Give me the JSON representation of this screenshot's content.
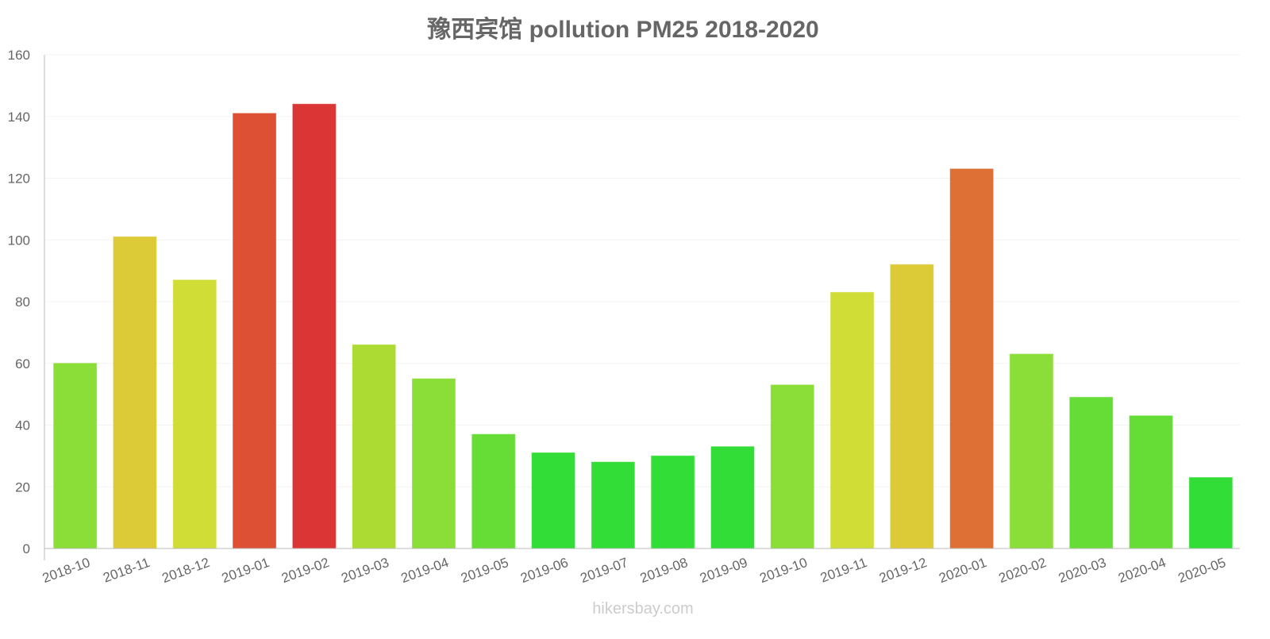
{
  "chart_data": {
    "type": "bar",
    "title": "豫西宾馆 pollution PM25 2018-2020",
    "xlabel": "",
    "ylabel": "",
    "ylim": [
      0,
      160
    ],
    "yticks": [
      0,
      20,
      40,
      60,
      80,
      100,
      120,
      140,
      160
    ],
    "grid": true,
    "categories": [
      "2018-10",
      "2018-11",
      "2018-12",
      "2019-01",
      "2019-02",
      "2019-03",
      "2019-04",
      "2019-05",
      "2019-06",
      "2019-07",
      "2019-08",
      "2019-09",
      "2019-10",
      "2019-11",
      "2019-12",
      "2020-01",
      "2020-02",
      "2020-03",
      "2020-04",
      "2020-05"
    ],
    "values": [
      60,
      101,
      87,
      141,
      144,
      66,
      55,
      37,
      31,
      28,
      30,
      33,
      53,
      83,
      92,
      123,
      63,
      49,
      43,
      23
    ],
    "colors": [
      "#8ade37",
      "#dcca37",
      "#cfdd36",
      "#de5033",
      "#dc3535",
      "#acdc33",
      "#8ade37",
      "#66dd37",
      "#33dd37",
      "#33dd37",
      "#33dd37",
      "#33dd37",
      "#8ade37",
      "#cfdd36",
      "#dcca37",
      "#de6f35",
      "#8ade37",
      "#66dd37",
      "#66dd37",
      "#33dd37"
    ],
    "watermark": "hikersbay.com"
  }
}
